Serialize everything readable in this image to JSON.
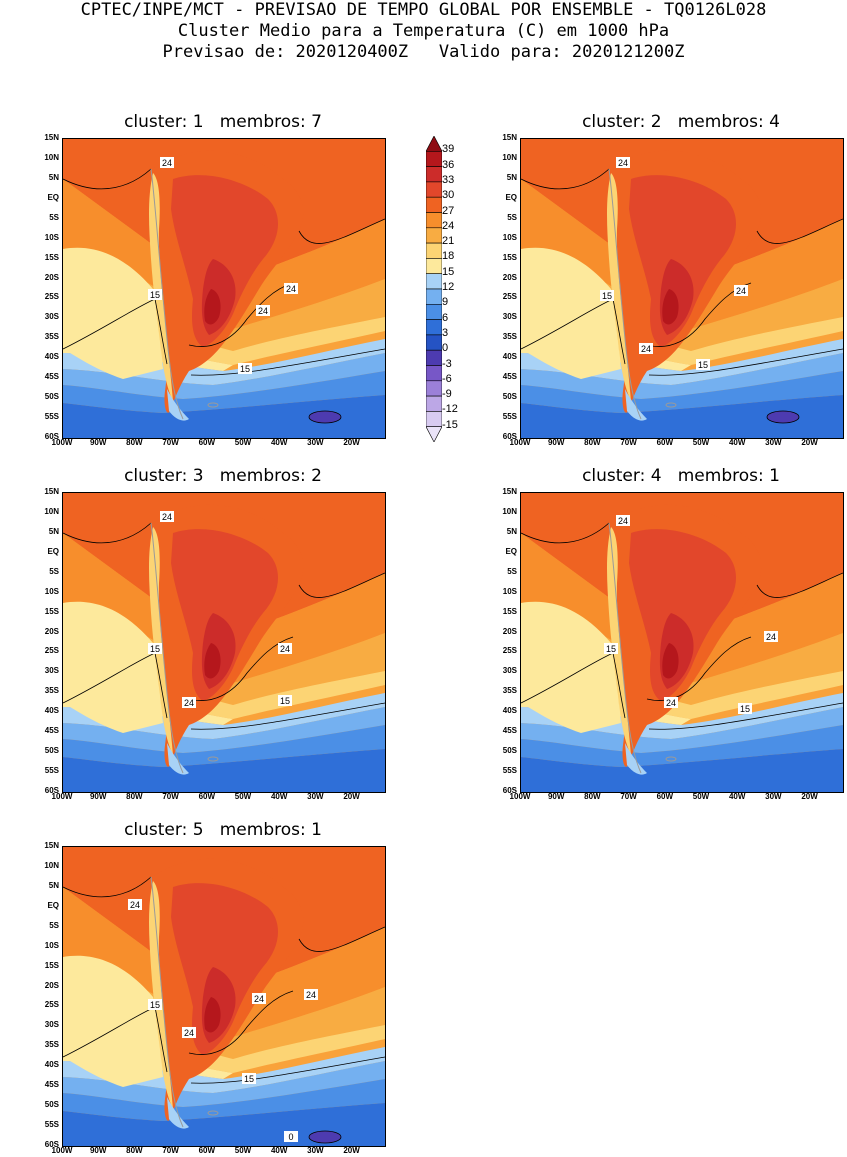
{
  "header": {
    "line1": "CPTEC/INPE/MCT - PREVISAO DE TEMPO GLOBAL POR ENSEMBLE - TQ0126L028",
    "line2": "Cluster Medio para a Temperatura (C) em 1000 hPa",
    "line3": "Previsao de: 2020120400Z   Valido para: 2020121200Z"
  },
  "lat_labels": [
    "15N",
    "10N",
    "5N",
    "EQ",
    "5S",
    "10S",
    "15S",
    "20S",
    "25S",
    "30S",
    "35S",
    "40S",
    "45S",
    "50S",
    "55S",
    "60S"
  ],
  "lon_labels": [
    "100W",
    "90W",
    "80W",
    "70W",
    "60W",
    "50W",
    "40W",
    "30W",
    "20W"
  ],
  "colorbar": {
    "labels": [
      "39",
      "36",
      "33",
      "30",
      "27",
      "24",
      "21",
      "18",
      "15",
      "12",
      "9",
      "6",
      "3",
      "0",
      "-3",
      "-6",
      "-9",
      "-12",
      "-15"
    ],
    "colors": [
      "#8f0d14",
      "#b5171c",
      "#cc2c2a",
      "#e2472b",
      "#ef6322",
      "#f78e2c",
      "#f8ac42",
      "#fcd474",
      "#fde99c",
      "#a8d2f6",
      "#74b0f0",
      "#4b8fe6",
      "#2f6fd8",
      "#2553c4",
      "#4d3bb0",
      "#7757c7",
      "#9b80d8",
      "#bca7e6",
      "#d8cbf1",
      "#eae3f8"
    ]
  },
  "clusters": [
    {
      "title": "cluster: 1   membros: 7",
      "contour_labels": [
        "24",
        "15",
        "24",
        "24",
        "15"
      ]
    },
    {
      "title": "cluster: 2   membros: 4",
      "contour_labels": [
        "24",
        "15",
        "24",
        "24",
        "15"
      ]
    },
    {
      "title": "cluster: 3   membros: 2",
      "contour_labels": [
        "24",
        "15",
        "24",
        "24",
        "15"
      ]
    },
    {
      "title": "cluster: 4   membros: 1",
      "contour_labels": [
        "24",
        "15",
        "24",
        "24",
        "15"
      ]
    },
    {
      "title": "cluster: 5   membros: 1",
      "contour_labels": [
        "24",
        "15",
        "24",
        "24",
        "24",
        "15",
        "0"
      ]
    }
  ]
}
